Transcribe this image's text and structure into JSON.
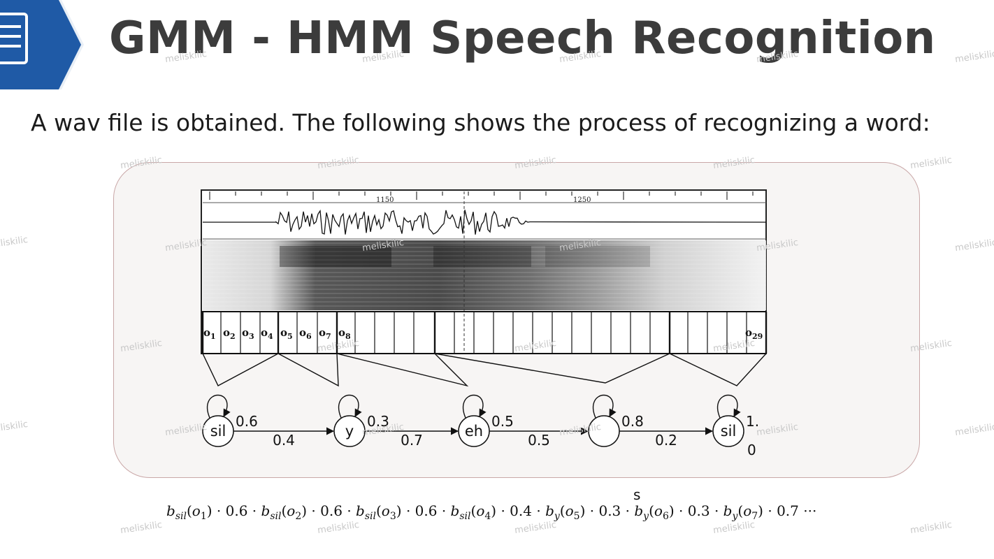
{
  "title": "GMM - HMM Speech Recognition",
  "subtitle": "A wav file is obtained. The following shows the process of recognizing a word:",
  "waveform": {
    "tick_labels": [
      "1150",
      "1250"
    ]
  },
  "observations": {
    "labels": [
      "o1",
      "o2",
      "o3",
      "o4",
      "o5",
      "o6",
      "o7",
      "o8",
      "o29"
    ]
  },
  "states": [
    {
      "label": "sil",
      "self_prob": "0.6",
      "next_prob": "0.4"
    },
    {
      "label": "y",
      "self_prob": "0.3",
      "next_prob": "0.7"
    },
    {
      "label": "eh",
      "self_prob": "0.5",
      "next_prob": "0.5"
    },
    {
      "label": "",
      "self_prob": "0.8",
      "next_prob": "0.2"
    },
    {
      "label": "sil",
      "self_prob": "1.",
      "self_prob_tail": "0"
    }
  ],
  "formula": {
    "dangling": "s",
    "terms": [
      {
        "fn": "b",
        "sub": "sil",
        "arg": "o",
        "argsub": "1",
        "coef": "0.6"
      },
      {
        "fn": "b",
        "sub": "sil",
        "arg": "o",
        "argsub": "2",
        "coef": "0.6"
      },
      {
        "fn": "b",
        "sub": "sil",
        "arg": "o",
        "argsub": "3",
        "coef": "0.6"
      },
      {
        "fn": "b",
        "sub": "sil",
        "arg": "o",
        "argsub": "4",
        "coef": "0.4"
      },
      {
        "fn": "b",
        "sub": "y",
        "arg": "o",
        "argsub": "5",
        "coef": "0.3"
      },
      {
        "fn": "b",
        "sub": "y",
        "arg": "o",
        "argsub": "6",
        "coef": "0.3"
      },
      {
        "fn": "b",
        "sub": "y",
        "arg": "o",
        "argsub": "7",
        "coef": "0.7"
      }
    ],
    "ellipsis": "···"
  },
  "watermark": "meliskilic",
  "colors": {
    "brand_blue": "#1f5aa6",
    "panel_border": "#c9a7a7",
    "panel_fill": "#f7f5f4"
  }
}
